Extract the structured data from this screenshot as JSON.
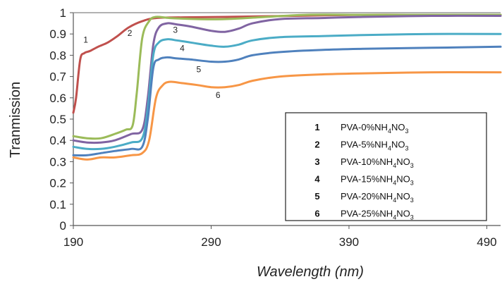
{
  "chart_data": {
    "type": "line",
    "title": "",
    "xlabel": "Wavelength (nm)",
    "ylabel": "Tranmission",
    "xlim": [
      190,
      500
    ],
    "ylim": [
      0,
      1
    ],
    "x_ticks": [
      190,
      290,
      390,
      490
    ],
    "y_ticks": [
      0,
      0.1,
      0.2,
      0.3,
      0.4,
      0.5,
      0.6,
      0.7,
      0.8,
      0.9,
      1
    ],
    "grid": false,
    "legend_position": "bottom-right",
    "legend": [
      {
        "num": "1",
        "base": "PVA-0%NH",
        "sub1": "4",
        "mid": "NO",
        "sub2": "3"
      },
      {
        "num": "2",
        "base": "PVA-5%NH",
        "sub1": "4",
        "mid": "NO",
        "sub2": "3"
      },
      {
        "num": "3",
        "base": "PVA-10%NH",
        "sub1": "4",
        "mid": "NO",
        "sub2": "3"
      },
      {
        "num": "4",
        "base": "PVA-15%NH",
        "sub1": "4",
        "mid": "NO",
        "sub2": "3"
      },
      {
        "num": "5",
        "base": "PVA-20%NH",
        "sub1": "4",
        "mid": "NO",
        "sub2": "3"
      },
      {
        "num": "6",
        "base": "PVA-25%NH",
        "sub1": "4",
        "mid": "NO",
        "sub2": "3"
      }
    ],
    "series": [
      {
        "label": "1",
        "color": "#c0504d",
        "x": [
          190,
          192,
          195,
          198,
          202,
          208,
          215,
          222,
          230,
          240,
          250,
          270,
          300,
          350,
          400,
          450,
          500
        ],
        "y": [
          0.53,
          0.6,
          0.78,
          0.81,
          0.82,
          0.84,
          0.86,
          0.89,
          0.93,
          0.96,
          0.975,
          0.978,
          0.98,
          0.985,
          0.99,
          0.99,
          0.99
        ]
      },
      {
        "label": "2",
        "color": "#9bbb59",
        "x": [
          190,
          200,
          210,
          220,
          228,
          233,
          236,
          240,
          245,
          250,
          260,
          280,
          300,
          330,
          360,
          400,
          450,
          500
        ],
        "y": [
          0.42,
          0.41,
          0.41,
          0.43,
          0.45,
          0.47,
          0.62,
          0.88,
          0.96,
          0.98,
          0.975,
          0.97,
          0.97,
          0.98,
          0.99,
          0.99,
          0.99,
          0.99
        ]
      },
      {
        "label": "3",
        "color": "#8064a2",
        "x": [
          190,
          200,
          210,
          220,
          232,
          240,
          244,
          248,
          252,
          258,
          265,
          275,
          290,
          300,
          310,
          320,
          340,
          370,
          400,
          450,
          500
        ],
        "y": [
          0.4,
          0.39,
          0.39,
          0.4,
          0.43,
          0.45,
          0.6,
          0.85,
          0.93,
          0.95,
          0.945,
          0.935,
          0.915,
          0.91,
          0.925,
          0.95,
          0.97,
          0.975,
          0.98,
          0.985,
          0.985
        ]
      },
      {
        "label": "4",
        "color": "#4bacc6",
        "x": [
          190,
          200,
          210,
          220,
          232,
          240,
          244,
          248,
          252,
          258,
          265,
          275,
          290,
          300,
          310,
          320,
          340,
          370,
          400,
          450,
          500
        ],
        "y": [
          0.37,
          0.36,
          0.36,
          0.37,
          0.39,
          0.41,
          0.55,
          0.8,
          0.86,
          0.875,
          0.87,
          0.86,
          0.845,
          0.84,
          0.85,
          0.87,
          0.885,
          0.89,
          0.895,
          0.9,
          0.9
        ]
      },
      {
        "label": "5",
        "color": "#4f81bd",
        "x": [
          190,
          200,
          210,
          220,
          232,
          240,
          244,
          248,
          252,
          258,
          265,
          275,
          290,
          300,
          310,
          320,
          340,
          370,
          400,
          450,
          500
        ],
        "y": [
          0.33,
          0.33,
          0.34,
          0.35,
          0.36,
          0.37,
          0.5,
          0.74,
          0.78,
          0.79,
          0.785,
          0.78,
          0.77,
          0.77,
          0.78,
          0.8,
          0.815,
          0.825,
          0.83,
          0.835,
          0.84
        ]
      },
      {
        "label": "6",
        "color": "#f79646",
        "x": [
          190,
          200,
          210,
          220,
          232,
          240,
          245,
          250,
          255,
          260,
          268,
          280,
          290,
          300,
          310,
          320,
          340,
          370,
          400,
          450,
          500
        ],
        "y": [
          0.32,
          0.31,
          0.32,
          0.32,
          0.33,
          0.34,
          0.4,
          0.6,
          0.66,
          0.675,
          0.67,
          0.66,
          0.65,
          0.65,
          0.66,
          0.68,
          0.7,
          0.71,
          0.715,
          0.72,
          0.72
        ]
      }
    ],
    "curve_labels": [
      {
        "text": "1",
        "x": 199,
        "y": 0.86
      },
      {
        "text": "2",
        "x": 231,
        "y": 0.89
      },
      {
        "text": "3",
        "x": 264,
        "y": 0.905
      },
      {
        "text": "4",
        "x": 269,
        "y": 0.82
      },
      {
        "text": "5",
        "x": 281,
        "y": 0.72
      },
      {
        "text": "6",
        "x": 295,
        "y": 0.6
      }
    ]
  }
}
